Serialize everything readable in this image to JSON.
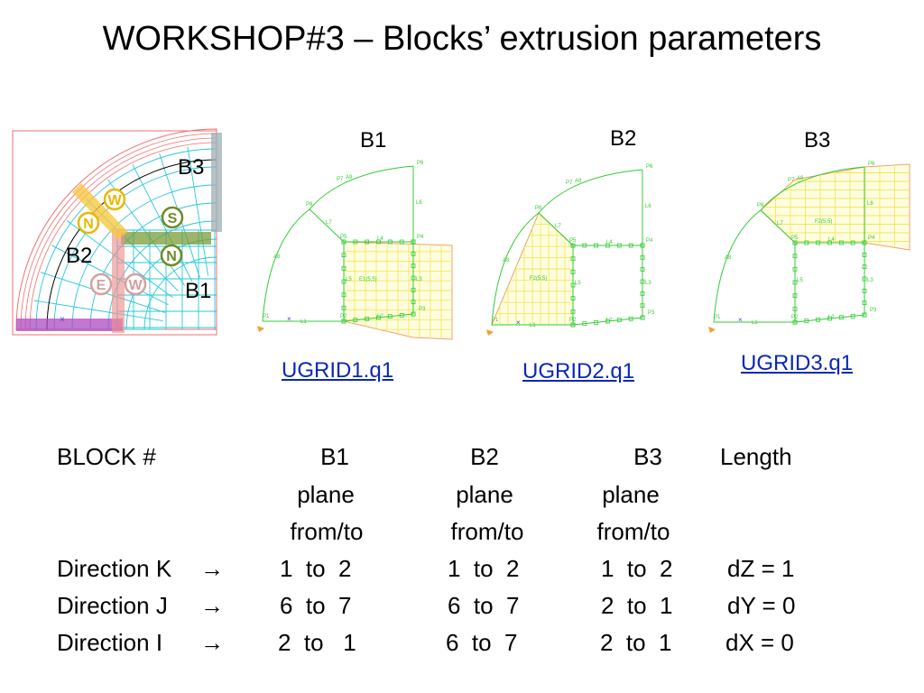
{
  "title": "WORKSHOP#3 – Blocks’ extrusion parameters",
  "overview": {
    "block_labels": [
      "B3",
      "B2",
      "B1"
    ],
    "face_markers": [
      {
        "text": "W",
        "color": "#e8b800"
      },
      {
        "text": "N",
        "color": "#e8b800"
      },
      {
        "text": "S",
        "color": "#6e8a2a"
      },
      {
        "text": "N",
        "color": "#6e8a2a"
      },
      {
        "text": "E",
        "color": "#d4a0a0"
      },
      {
        "text": "W",
        "color": "#d4a0a0"
      }
    ],
    "palette": {
      "outline": "#f07070",
      "mesh": "#26c7d8",
      "inner": "#000000",
      "highlight_yellow": "#f6c842",
      "highlight_green": "#7a9c3a",
      "highlight_grey": "#9ab0b4",
      "highlight_magenta": "#b048c0",
      "highlight_pink": "#f09090"
    }
  },
  "panels": [
    {
      "title": "B1",
      "link": "UGRID1.q1",
      "labels": {
        "p1": "P1",
        "p2": "P2",
        "p3": "P3",
        "p4": "P4",
        "p5": "P5",
        "p6": "P6",
        "p7": "P7",
        "p8": "P8",
        "l1": "L1",
        "l2": "L2",
        "l3": "L3",
        "l4": "L4",
        "l5": "L5",
        "l6": "L6",
        "l7": "L7",
        "a8": "A8",
        "a9": "A9",
        "f": "E1(5,5)"
      }
    },
    {
      "title": "B2",
      "link": "UGRID2.q1",
      "labels": {
        "p1": "P1",
        "p2": "P2",
        "p3": "P3",
        "p4": "P4",
        "p5": "P5",
        "p6": "P6",
        "p7": "P7",
        "p8": "P8",
        "l1": "L1",
        "l2": "L2",
        "l3": "L3",
        "l4": "L4",
        "l5": "L5",
        "l6": "L6",
        "l7": "L7",
        "a8": "A8",
        "a9": "A9",
        "f": "F2(5,5)"
      }
    },
    {
      "title": "B3",
      "link": "UGRID3.q1",
      "labels": {
        "p1": "P1",
        "p2": "P2",
        "p3": "P3",
        "p4": "P4",
        "p5": "P5",
        "p6": "P6",
        "p7": "P7",
        "p8": "P8",
        "l1": "L1",
        "l2": "L2",
        "l3": "L3",
        "l4": "L4",
        "l5": "L5",
        "l6": "L6",
        "l7": "L7",
        "a8": "A8",
        "a9": "A9",
        "f": "F2(5,5)"
      }
    }
  ],
  "table": {
    "header": {
      "col0": "BLOCK #",
      "b1": "B1",
      "b2": "B2",
      "b3": "B3",
      "len": "Length"
    },
    "sub1": {
      "b1": "plane",
      "b2": "plane",
      "b3": "plane"
    },
    "sub2": {
      "b1": "from/to",
      "b2": "from/to",
      "b3": "from/to"
    },
    "rows": [
      {
        "dir": "Direction K",
        "arrow": "→",
        "b1": "1  to  2",
        "b2": "1  to  2",
        "b3": "1  to  2",
        "len": "dZ = 1"
      },
      {
        "dir": "Direction J",
        "arrow": "→",
        "b1": "6  to  7",
        "b2": "6  to  7",
        "b3": "2  to  1",
        "len": "dY = 0"
      },
      {
        "dir": "Direction I",
        "arrow": "→",
        "b1": "2  to   1",
        "b2": "6  to  7",
        "b3": "2  to  1",
        "len": "dX = 0"
      }
    ]
  }
}
